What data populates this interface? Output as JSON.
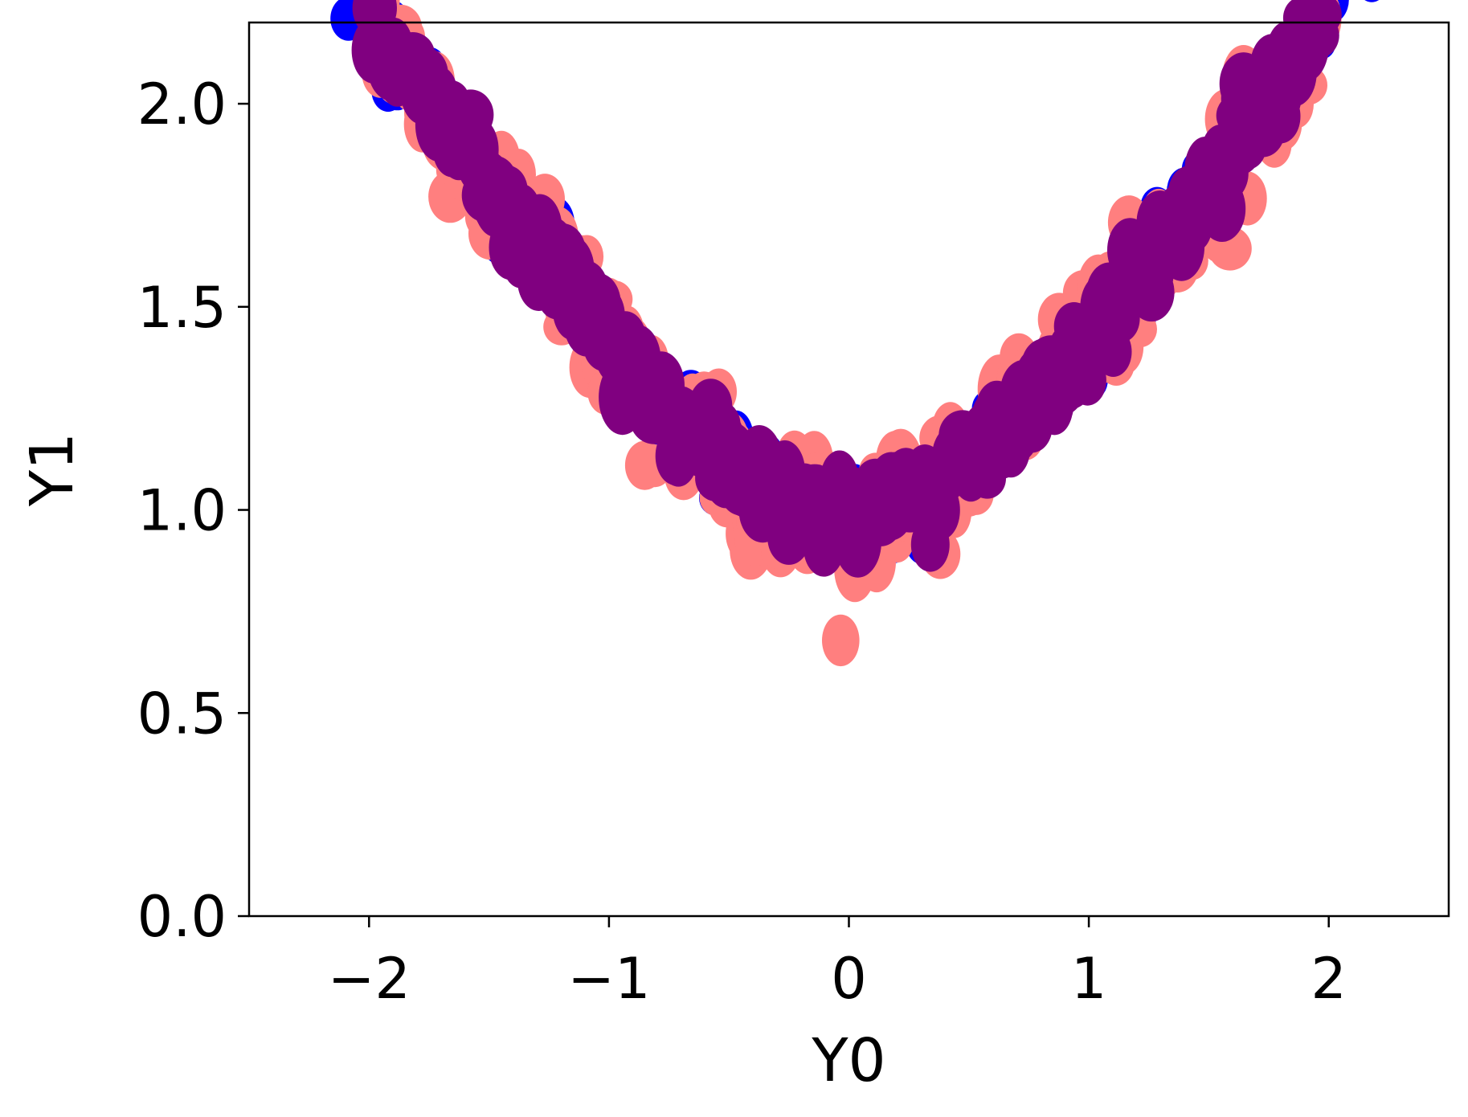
{
  "chart_data": {
    "type": "scatter",
    "title": "",
    "xlabel": "Y0",
    "ylabel": "Y1",
    "xlim": [
      -2.5,
      2.5
    ],
    "ylim": [
      0.0,
      2.2
    ],
    "x_ticks": [
      -2,
      -1,
      0,
      1,
      2
    ],
    "x_tick_labels": [
      "−2",
      "−1",
      "0",
      "1",
      "2"
    ],
    "y_ticks": [
      0.0,
      0.5,
      1.0,
      1.5,
      2.0
    ],
    "y_tick_labels": [
      "0.0",
      "0.5",
      "1.0",
      "1.5",
      "2.0"
    ],
    "grid": false,
    "legend": "none",
    "curve_model": "y = sqrt(1 + x^2), x in [-2.1, 2.1]",
    "series": [
      {
        "color": "#0000ff",
        "marker_radius": 0.04,
        "x_range": [
          -2.15,
          2.15
        ],
        "noise": 0.05,
        "points": 220
      },
      {
        "color": "#ff7f7f",
        "marker_radius": 0.045,
        "x_range": [
          -1.95,
          1.95
        ],
        "noise": 0.08,
        "points": 260
      },
      {
        "color": "#800080",
        "marker_radius": 0.05,
        "x_range": [
          -1.95,
          1.95
        ],
        "noise": 0.045,
        "points": 320
      }
    ]
  }
}
